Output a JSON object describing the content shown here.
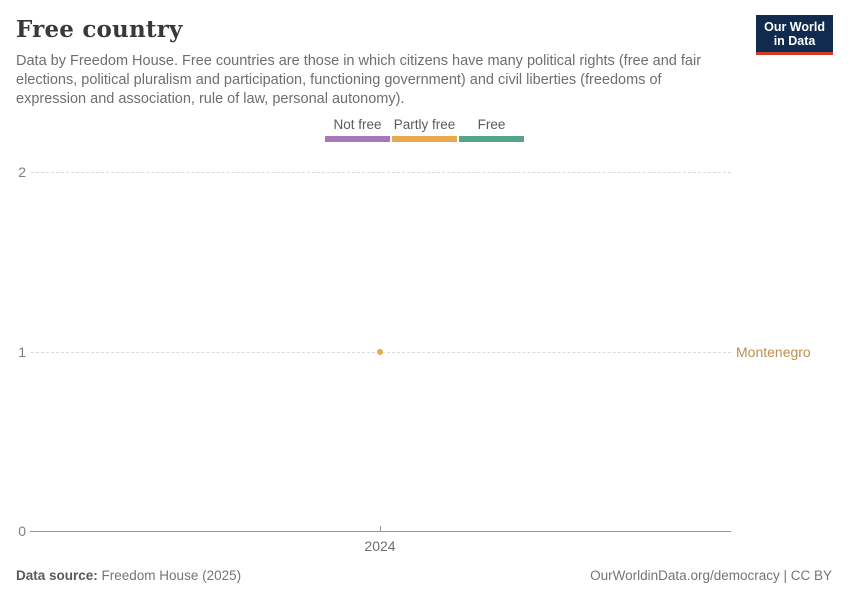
{
  "header": {
    "title": "Free country",
    "subtitle": "Data by Freedom House. Free countries are those in which citizens have many political rights (free and fair elections, political pluralism and participation, functioning government) and civil liberties (freedoms of expression and association, rule of law, personal autonomy)."
  },
  "logo": {
    "line1": "Our World",
    "line2": "in Data",
    "bg_color": "#112b4e",
    "accent_color": "#d23a2c"
  },
  "legend": {
    "items": [
      {
        "label": "Not free",
        "color": "#a878b8"
      },
      {
        "label": "Partly free",
        "color": "#e8aa4b"
      },
      {
        "label": "Free",
        "color": "#55a388"
      }
    ]
  },
  "chart_data": {
    "type": "scatter",
    "title": "Free country",
    "x": [
      2024
    ],
    "xticks": [
      "2024"
    ],
    "yticks": [
      "0",
      "1",
      "2"
    ],
    "ylim": [
      0,
      2
    ],
    "grid": "horizontal-dashed",
    "legend_position": "top-center",
    "series": [
      {
        "name": "Montenegro",
        "values": [
          1
        ],
        "category": "Partly free",
        "point_color": "#e8aa4b",
        "label_color": "#bf8e4e"
      }
    ]
  },
  "footer": {
    "datasource_label": "Data source:",
    "datasource_value": " Freedom House (2025)",
    "right": "OurWorldinData.org/democracy | CC BY"
  }
}
